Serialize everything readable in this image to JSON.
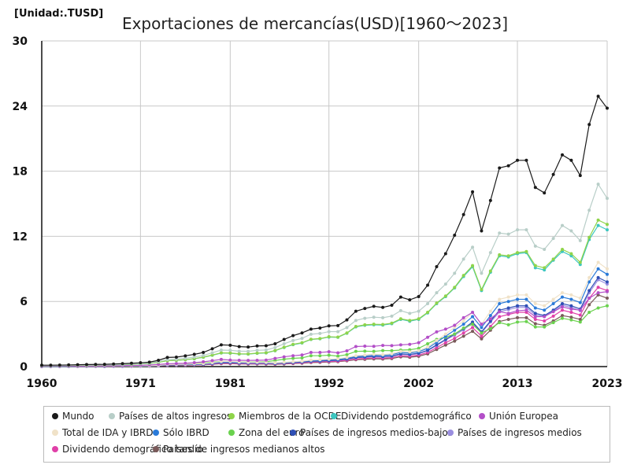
{
  "chart_data": {
    "type": "line",
    "title": "Exportaciones de mercancías(USD)[1960〜2023]",
    "unit_label": "[Unidad:.TUSD]",
    "xlabel": "",
    "ylabel": "",
    "xlim": [
      1960,
      2023
    ],
    "ylim": [
      0,
      30
    ],
    "x_ticks": [
      1960,
      1971,
      1981,
      1992,
      2002,
      2013,
      2023
    ],
    "y_ticks": [
      0,
      6,
      12,
      18,
      24,
      30
    ],
    "grid": true,
    "legend_position": "bottom",
    "x": [
      1960,
      1961,
      1962,
      1963,
      1964,
      1965,
      1966,
      1967,
      1968,
      1969,
      1970,
      1971,
      1972,
      1973,
      1974,
      1975,
      1976,
      1977,
      1978,
      1979,
      1980,
      1981,
      1982,
      1983,
      1984,
      1985,
      1986,
      1987,
      1988,
      1989,
      1990,
      1991,
      1992,
      1993,
      1994,
      1995,
      1996,
      1997,
      1998,
      1999,
      2000,
      2001,
      2002,
      2003,
      2004,
      2005,
      2006,
      2007,
      2008,
      2009,
      2010,
      2011,
      2012,
      2013,
      2014,
      2015,
      2016,
      2017,
      2018,
      2019,
      2020,
      2021,
      2022,
      2023
    ],
    "series": [
      {
        "name": "Mundo",
        "color": "#1a1a1a",
        "values": [
          0.13,
          0.13,
          0.14,
          0.15,
          0.17,
          0.19,
          0.2,
          0.21,
          0.24,
          0.27,
          0.31,
          0.35,
          0.41,
          0.58,
          0.84,
          0.87,
          0.99,
          1.13,
          1.3,
          1.64,
          2.0,
          1.97,
          1.84,
          1.8,
          1.9,
          1.92,
          2.1,
          2.5,
          2.85,
          3.1,
          3.45,
          3.55,
          3.75,
          3.78,
          4.3,
          5.1,
          5.35,
          5.55,
          5.45,
          5.65,
          6.4,
          6.15,
          6.45,
          7.5,
          9.2,
          10.4,
          12.1,
          14.0,
          16.1,
          12.5,
          15.3,
          18.3,
          18.5,
          19.0,
          19.0,
          16.5,
          16.0,
          17.7,
          19.5,
          19.0,
          17.6,
          22.3,
          24.9,
          23.8
        ]
      },
      {
        "name": "Países de altos ingresos",
        "color": "#b8cec8",
        "values": [
          0.1,
          0.1,
          0.11,
          0.12,
          0.13,
          0.15,
          0.16,
          0.17,
          0.19,
          0.21,
          0.25,
          0.28,
          0.33,
          0.46,
          0.64,
          0.68,
          0.77,
          0.88,
          1.02,
          1.27,
          1.52,
          1.5,
          1.42,
          1.41,
          1.5,
          1.53,
          1.75,
          2.1,
          2.4,
          2.6,
          2.98,
          3.05,
          3.22,
          3.22,
          3.6,
          4.25,
          4.45,
          4.55,
          4.5,
          4.65,
          5.15,
          4.9,
          5.1,
          5.8,
          6.8,
          7.6,
          8.6,
          9.9,
          11.0,
          8.6,
          10.5,
          12.3,
          12.2,
          12.6,
          12.6,
          11.1,
          10.8,
          11.8,
          13.0,
          12.5,
          11.6,
          14.4,
          16.8,
          15.5
        ]
      },
      {
        "name": "Miembros de la OCDE",
        "color": "#8fd44a",
        "values": [
          0.09,
          0.09,
          0.1,
          0.11,
          0.12,
          0.13,
          0.14,
          0.15,
          0.17,
          0.19,
          0.22,
          0.25,
          0.29,
          0.4,
          0.54,
          0.58,
          0.64,
          0.73,
          0.87,
          1.06,
          1.27,
          1.25,
          1.18,
          1.17,
          1.24,
          1.28,
          1.48,
          1.78,
          2.05,
          2.2,
          2.52,
          2.58,
          2.75,
          2.72,
          3.1,
          3.7,
          3.85,
          3.9,
          3.88,
          4.0,
          4.4,
          4.25,
          4.4,
          5.0,
          5.85,
          6.5,
          7.3,
          8.4,
          9.3,
          7.1,
          8.8,
          10.3,
          10.2,
          10.5,
          10.6,
          9.3,
          9.1,
          9.9,
          10.8,
          10.4,
          9.6,
          11.9,
          13.5,
          13.1
        ]
      },
      {
        "name": "Dividendo postdemográfico",
        "color": "#3cc6c0",
        "values": [
          0.09,
          0.09,
          0.1,
          0.11,
          0.12,
          0.13,
          0.14,
          0.15,
          0.17,
          0.19,
          0.22,
          0.25,
          0.29,
          0.4,
          0.54,
          0.57,
          0.63,
          0.72,
          0.86,
          1.04,
          1.25,
          1.23,
          1.16,
          1.15,
          1.22,
          1.26,
          1.46,
          1.76,
          2.02,
          2.17,
          2.5,
          2.56,
          2.72,
          2.7,
          3.07,
          3.66,
          3.8,
          3.85,
          3.82,
          3.95,
          4.35,
          4.18,
          4.35,
          4.95,
          5.8,
          6.45,
          7.25,
          8.3,
          9.2,
          7.0,
          8.7,
          10.2,
          10.1,
          10.4,
          10.5,
          9.1,
          8.9,
          9.8,
          10.6,
          10.2,
          9.4,
          11.7,
          13.0,
          12.6
        ]
      },
      {
        "name": "Unión Europea",
        "color": "#b34fc8",
        "values": [
          0.03,
          0.04,
          0.04,
          0.05,
          0.05,
          0.06,
          0.06,
          0.07,
          0.08,
          0.09,
          0.11,
          0.12,
          0.15,
          0.2,
          0.26,
          0.28,
          0.31,
          0.36,
          0.44,
          0.55,
          0.66,
          0.6,
          0.58,
          0.57,
          0.58,
          0.6,
          0.75,
          0.9,
          1.0,
          1.07,
          1.3,
          1.3,
          1.37,
          1.27,
          1.45,
          1.85,
          1.88,
          1.87,
          1.95,
          1.93,
          2.0,
          2.05,
          2.2,
          2.7,
          3.2,
          3.45,
          3.8,
          4.5,
          5.0,
          3.9,
          4.4,
          5.05,
          4.9,
          5.15,
          5.2,
          4.6,
          4.6,
          5.05,
          5.5,
          5.3,
          5.2,
          6.3,
          6.8,
          6.9
        ]
      },
      {
        "name": "Total de IDA y IBRD",
        "color": "#f0e2c8",
        "values": [
          0.03,
          0.03,
          0.03,
          0.04,
          0.04,
          0.04,
          0.04,
          0.05,
          0.05,
          0.06,
          0.06,
          0.07,
          0.08,
          0.11,
          0.19,
          0.2,
          0.22,
          0.25,
          0.27,
          0.36,
          0.47,
          0.47,
          0.42,
          0.39,
          0.4,
          0.39,
          0.35,
          0.4,
          0.45,
          0.5,
          0.6,
          0.63,
          0.68,
          0.72,
          0.84,
          1.0,
          1.06,
          1.13,
          1.1,
          1.18,
          1.4,
          1.35,
          1.47,
          1.8,
          2.4,
          3.0,
          3.6,
          4.2,
          5.0,
          3.9,
          5.1,
          6.2,
          6.4,
          6.6,
          6.6,
          5.8,
          5.6,
          6.2,
          6.8,
          6.6,
          6.3,
          8.2,
          9.6,
          9.0
        ]
      },
      {
        "name": "Sólo IBRD",
        "color": "#2a7ad8",
        "values": [
          0.02,
          0.02,
          0.02,
          0.03,
          0.03,
          0.03,
          0.03,
          0.04,
          0.04,
          0.05,
          0.05,
          0.06,
          0.07,
          0.1,
          0.17,
          0.18,
          0.2,
          0.22,
          0.25,
          0.33,
          0.43,
          0.43,
          0.38,
          0.36,
          0.37,
          0.36,
          0.32,
          0.37,
          0.42,
          0.47,
          0.55,
          0.58,
          0.63,
          0.67,
          0.78,
          0.93,
          0.98,
          1.05,
          1.02,
          1.1,
          1.3,
          1.25,
          1.37,
          1.68,
          2.25,
          2.8,
          3.35,
          3.9,
          4.6,
          3.6,
          4.7,
          5.8,
          6.0,
          6.2,
          6.2,
          5.4,
          5.2,
          5.8,
          6.4,
          6.2,
          5.9,
          7.8,
          9.0,
          8.5
        ]
      },
      {
        "name": "Zona del euro",
        "color": "#6ad24e",
        "values": [
          0.02,
          0.03,
          0.03,
          0.03,
          0.04,
          0.04,
          0.05,
          0.05,
          0.06,
          0.07,
          0.08,
          0.09,
          0.11,
          0.15,
          0.19,
          0.2,
          0.23,
          0.27,
          0.33,
          0.41,
          0.49,
          0.45,
          0.43,
          0.42,
          0.43,
          0.45,
          0.56,
          0.68,
          0.76,
          0.8,
          1.0,
          1.0,
          1.05,
          0.96,
          1.1,
          1.4,
          1.42,
          1.4,
          1.48,
          1.47,
          1.52,
          1.55,
          1.68,
          2.1,
          2.5,
          2.7,
          3.0,
          3.55,
          3.9,
          3.1,
          3.5,
          4.05,
          3.85,
          4.1,
          4.15,
          3.65,
          3.65,
          4.05,
          4.45,
          4.3,
          4.1,
          5.0,
          5.4,
          5.6
        ]
      },
      {
        "name": "Países de ingresos medios-bajos",
        "color": "#2f4fb5",
        "values": [
          0.02,
          0.02,
          0.02,
          0.02,
          0.03,
          0.03,
          0.03,
          0.03,
          0.04,
          0.04,
          0.05,
          0.05,
          0.06,
          0.09,
          0.15,
          0.16,
          0.18,
          0.2,
          0.22,
          0.3,
          0.38,
          0.38,
          0.34,
          0.32,
          0.33,
          0.32,
          0.29,
          0.33,
          0.38,
          0.42,
          0.5,
          0.52,
          0.56,
          0.6,
          0.7,
          0.84,
          0.88,
          0.94,
          0.92,
          0.98,
          1.17,
          1.12,
          1.23,
          1.5,
          2.0,
          2.5,
          3.0,
          3.5,
          4.1,
          3.2,
          4.2,
          5.2,
          5.4,
          5.6,
          5.6,
          4.9,
          4.7,
          5.2,
          5.8,
          5.6,
          5.3,
          7.0,
          8.2,
          7.8
        ]
      },
      {
        "name": "Países de ingresos medios",
        "color": "#9a8ee0",
        "values": [
          0.02,
          0.02,
          0.02,
          0.02,
          0.03,
          0.03,
          0.03,
          0.03,
          0.04,
          0.04,
          0.05,
          0.05,
          0.06,
          0.08,
          0.14,
          0.15,
          0.17,
          0.19,
          0.21,
          0.28,
          0.36,
          0.36,
          0.32,
          0.31,
          0.32,
          0.31,
          0.28,
          0.32,
          0.37,
          0.41,
          0.48,
          0.5,
          0.54,
          0.58,
          0.68,
          0.81,
          0.86,
          0.91,
          0.89,
          0.95,
          1.13,
          1.09,
          1.19,
          1.46,
          1.95,
          2.45,
          2.9,
          3.4,
          4.0,
          3.1,
          4.1,
          5.05,
          5.25,
          5.45,
          5.45,
          4.75,
          4.6,
          5.1,
          5.65,
          5.45,
          5.15,
          6.8,
          8.0,
          7.6
        ]
      },
      {
        "name": "Dividendo demográfico tardío",
        "color": "#e040a8",
        "values": [
          0.02,
          0.02,
          0.02,
          0.02,
          0.02,
          0.03,
          0.03,
          0.03,
          0.03,
          0.04,
          0.04,
          0.05,
          0.05,
          0.07,
          0.12,
          0.13,
          0.14,
          0.16,
          0.18,
          0.24,
          0.31,
          0.31,
          0.28,
          0.26,
          0.27,
          0.26,
          0.24,
          0.28,
          0.32,
          0.35,
          0.42,
          0.44,
          0.47,
          0.5,
          0.59,
          0.7,
          0.75,
          0.8,
          0.78,
          0.83,
          1.0,
          0.96,
          1.06,
          1.3,
          1.75,
          2.2,
          2.6,
          3.1,
          3.6,
          2.8,
          3.7,
          4.6,
          4.8,
          5.0,
          5.0,
          4.35,
          4.2,
          4.65,
          5.2,
          5.0,
          4.75,
          6.3,
          7.3,
          7.0
        ]
      },
      {
        "name": "Países de ingresos medianos altos",
        "color": "#7a5a5a",
        "values": [
          0.01,
          0.01,
          0.02,
          0.02,
          0.02,
          0.02,
          0.02,
          0.02,
          0.03,
          0.03,
          0.03,
          0.04,
          0.04,
          0.06,
          0.1,
          0.11,
          0.12,
          0.14,
          0.16,
          0.21,
          0.27,
          0.27,
          0.24,
          0.23,
          0.24,
          0.23,
          0.21,
          0.24,
          0.28,
          0.31,
          0.37,
          0.39,
          0.42,
          0.45,
          0.53,
          0.63,
          0.67,
          0.71,
          0.7,
          0.74,
          0.9,
          0.86,
          0.95,
          1.17,
          1.58,
          1.98,
          2.35,
          2.8,
          3.25,
          2.55,
          3.35,
          4.15,
          4.35,
          4.5,
          4.5,
          3.95,
          3.8,
          4.2,
          4.7,
          4.55,
          4.35,
          5.7,
          6.6,
          6.3
        ]
      }
    ]
  }
}
